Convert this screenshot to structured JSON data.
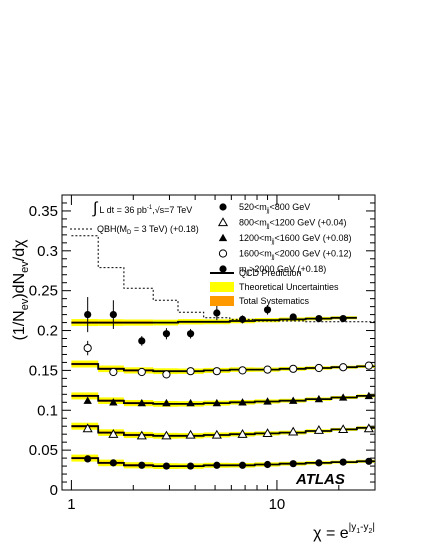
{
  "chart_data": {
    "type": "scatter",
    "title": "",
    "xlabel": "χ = e",
    "xlabel_sup": "|y",
    "xlabel_sub1": "1",
    "xlabel_mid": "-y",
    "xlabel_sub2": "2",
    "xlabel_end": "|",
    "ylabel": "(1/N",
    "ylabel_sub_ev": "ev",
    "ylabel_mid": ")dN",
    "ylabel_end": "/dχ",
    "xscale": "log",
    "xlim": [
      0.9,
      30
    ],
    "ylim": [
      0,
      0.37
    ],
    "yticks": [
      {
        "v": 0,
        "label": "0"
      },
      {
        "v": 0.05,
        "label": "0.05"
      },
      {
        "v": 0.1,
        "label": "0.1"
      },
      {
        "v": 0.15,
        "label": "0.15"
      },
      {
        "v": 0.2,
        "label": "0.2"
      },
      {
        "v": 0.25,
        "label": "0.25"
      },
      {
        "v": 0.3,
        "label": "0.3"
      },
      {
        "v": 0.35,
        "label": "0.35"
      }
    ],
    "xticks": [
      {
        "v": 1,
        "label": "1"
      },
      {
        "v": 10,
        "label": "10"
      }
    ],
    "x": [
      1.2,
      1.6,
      2.2,
      2.9,
      3.8,
      5.1,
      6.8,
      9.0,
      12.0,
      16.0,
      21.0,
      28.0
    ],
    "bins": [
      1.0,
      1.35,
      1.8,
      2.5,
      3.3,
      4.4,
      5.9,
      7.8,
      10.3,
      13.8,
      18.4,
      24.5,
      30.0
    ],
    "series": [
      {
        "label": "m_jj>2000 GeV (+0.18)",
        "marker": "filled-circle",
        "values": [
          0.22,
          0.22,
          0.187,
          0.196,
          0.196,
          0.222,
          0.214,
          0.226,
          0.217,
          0.215,
          0.215
        ],
        "errors": [
          0.022,
          0.018,
          0.006,
          0.007,
          0.006,
          0.009,
          0.005,
          0.006,
          0.004,
          0.003,
          0.003
        ],
        "prediction": [
          0.21,
          0.21,
          0.21,
          0.21,
          0.211,
          0.211,
          0.212,
          0.213,
          0.214,
          0.215,
          0.216
        ]
      },
      {
        "label": "1600<m_jj<2000 GeV (+0.12)",
        "marker": "open-circle",
        "values": [
          0.178,
          0.148,
          0.148,
          0.145,
          0.149,
          0.149,
          0.15,
          0.151,
          0.152,
          0.153,
          0.154,
          0.156
        ],
        "errors": [
          0.009,
          0.005,
          0.004,
          0.003,
          0.003,
          0.003,
          0.003,
          0.003,
          0.002,
          0.002,
          0.002,
          0.002
        ],
        "prediction": [
          0.158,
          0.152,
          0.15,
          0.149,
          0.149,
          0.15,
          0.151,
          0.151,
          0.152,
          0.153,
          0.154,
          0.155
        ]
      },
      {
        "label": "1200<m_jj<1600 GeV (+0.08)",
        "marker": "filled-triangle",
        "values": [
          0.112,
          0.11,
          0.109,
          0.109,
          0.109,
          0.109,
          0.11,
          0.111,
          0.112,
          0.114,
          0.116,
          0.118
        ],
        "errors": [
          0.003,
          0.003,
          0.002,
          0.002,
          0.002,
          0.002,
          0.002,
          0.002,
          0.002,
          0.002,
          0.002,
          0.002
        ],
        "prediction": [
          0.118,
          0.112,
          0.109,
          0.108,
          0.108,
          0.109,
          0.11,
          0.111,
          0.112,
          0.114,
          0.116,
          0.118
        ]
      },
      {
        "label": "800<m_jj<1200 GeV (+0.04)",
        "marker": "open-triangle",
        "values": [
          0.077,
          0.07,
          0.068,
          0.068,
          0.069,
          0.069,
          0.07,
          0.071,
          0.073,
          0.075,
          0.076,
          0.077
        ],
        "errors": [
          0.002,
          0.002,
          0.002,
          0.002,
          0.002,
          0.002,
          0.002,
          0.002,
          0.002,
          0.002,
          0.002,
          0.002
        ],
        "prediction": [
          0.08,
          0.072,
          0.069,
          0.068,
          0.068,
          0.069,
          0.07,
          0.071,
          0.072,
          0.074,
          0.076,
          0.078
        ]
      },
      {
        "label": "520<m_jj<800 GeV",
        "marker": "filled-circle",
        "values": [
          0.039,
          0.034,
          0.031,
          0.03,
          0.03,
          0.031,
          0.031,
          0.032,
          0.033,
          0.034,
          0.035,
          0.036
        ],
        "errors": [
          0.002,
          0.001,
          0.001,
          0.001,
          0.001,
          0.001,
          0.001,
          0.001,
          0.001,
          0.001,
          0.001,
          0.001
        ],
        "prediction": [
          0.04,
          0.034,
          0.031,
          0.03,
          0.03,
          0.031,
          0.031,
          0.032,
          0.033,
          0.034,
          0.035,
          0.036
        ]
      }
    ],
    "qbh": {
      "label": "QBH(M",
      "label_sub": "D",
      "label_end": " = 3 TeV) (+0.18)",
      "bins": [
        1.0,
        1.35,
        1.8,
        2.5,
        3.3,
        4.4,
        5.9,
        7.8,
        10.3,
        13.8,
        18.4,
        24.5,
        30.0
      ],
      "values": [
        0.319,
        0.279,
        0.253,
        0.238,
        0.223,
        0.216,
        0.214,
        0.212,
        0.212,
        0.211,
        0.211,
        0.211
      ]
    },
    "lumi": {
      "integral": "∫",
      "text": "L dt = 36 pb",
      "sup": "-1",
      "sep": ",√s=7 TeV"
    },
    "legend": {
      "placement": "top-right",
      "entries": [
        {
          "main": "520<m",
          "sub": "jj",
          "end": "<800 GeV",
          "marker": "filled-circle"
        },
        {
          "main": "800<m",
          "sub": "jj",
          "end": "<1200 GeV (+0.04)",
          "marker": "open-triangle"
        },
        {
          "main": "1200<m",
          "sub": "jj",
          "end": "<1600 GeV (+0.08)",
          "marker": "filled-triangle"
        },
        {
          "main": "1600<m",
          "sub": "jj",
          "end": "<2000 GeV (+0.12)",
          "marker": "open-circle"
        },
        {
          "main": "m",
          "sub": "jj",
          "end": ">2000 GeV (+0.18)",
          "marker": "filled-circle"
        }
      ],
      "qcd": "QCD Prediction",
      "theory": "Theoretical Uncertainties",
      "syst": "Total Systematics"
    },
    "experiment_label": "ATLAS",
    "colors": {
      "theory_band": "#ffff00",
      "syst_band": "#ff9900",
      "qcd_line": "#000000",
      "markers": "#000000"
    }
  }
}
